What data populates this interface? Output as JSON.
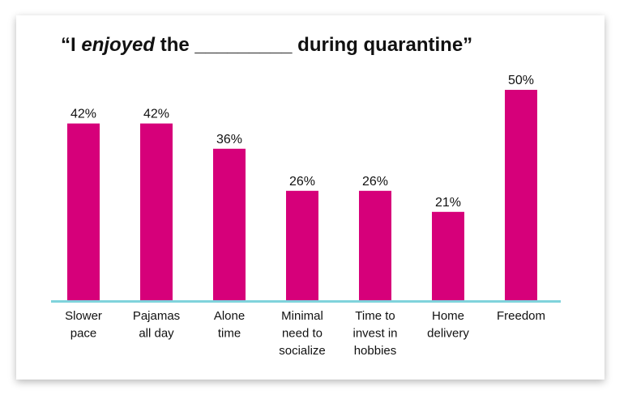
{
  "chart_data": {
    "type": "bar",
    "title": {
      "prefix": "“I ",
      "emphasis": "enjoyed",
      "suffix": " the _________ during quarantine”"
    },
    "categories": [
      [
        "Slower",
        "pace"
      ],
      [
        "Pajamas",
        "all day"
      ],
      [
        "Alone",
        "time"
      ],
      [
        "Minimal",
        "need to",
        "socialize"
      ],
      [
        "Time to",
        "invest in",
        "hobbies"
      ],
      [
        "Home",
        "delivery"
      ],
      [
        "Freedom"
      ]
    ],
    "values": [
      42,
      42,
      36,
      26,
      26,
      21,
      50
    ],
    "value_labels": [
      "42%",
      "42%",
      "36%",
      "26%",
      "26%",
      "21%",
      "50%"
    ],
    "unit": "%",
    "ylim": [
      0,
      50
    ],
    "grid": false,
    "legend": "none",
    "colors": {
      "bar": "#d6007a",
      "baseline": "#7fd3dc",
      "text": "#111111"
    }
  }
}
